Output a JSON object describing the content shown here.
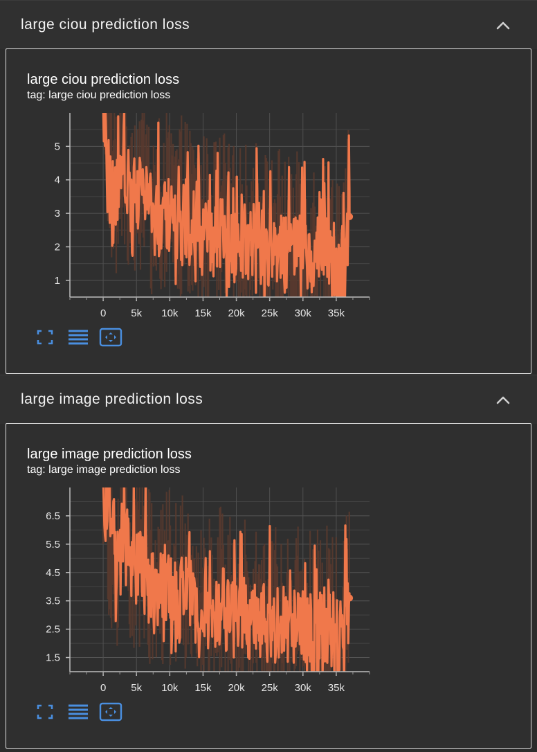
{
  "sections": [
    {
      "header_title": "large ciou prediction loss",
      "card_title": "large ciou prediction loss",
      "card_tag": "tag: large ciou prediction loss"
    },
    {
      "header_title": "large image prediction loss",
      "card_title": "large image prediction loss",
      "card_tag": "tag: large image prediction loss"
    }
  ],
  "icons": {
    "collapse": "chevron-up-icon",
    "fullscreen": "fullscreen-icon",
    "log_scale": "lines-icon",
    "fit_domain": "fit-domain-icon"
  },
  "colors": {
    "series": "#f0784b",
    "raw_series": "#5a3a2e",
    "accent": "#4a8fe0"
  },
  "chart_data": [
    {
      "type": "line",
      "title": "large ciou prediction loss",
      "xlabel": "",
      "ylabel": "",
      "xlim": [
        -5000,
        40000
      ],
      "ylim": [
        0.5,
        6.0
      ],
      "x_ticks": [
        0,
        5000,
        10000,
        15000,
        20000,
        25000,
        30000,
        35000
      ],
      "x_tick_labels": [
        "0",
        "5k",
        "10k",
        "15k",
        "20k",
        "25k",
        "30k",
        "35k"
      ],
      "y_ticks": [
        1,
        2,
        3,
        4,
        5
      ],
      "y_tick_labels": [
        "1",
        "2",
        "3",
        "4",
        "5"
      ],
      "grid": true,
      "series": [
        {
          "x": [
            0,
            1000,
            2000,
            3000,
            4000,
            5000,
            6000,
            7000,
            8000,
            9000,
            10000,
            11000,
            12000,
            13000,
            14000,
            15000,
            16000,
            17000,
            18000,
            19000,
            20000,
            21000,
            22000,
            23000,
            24000,
            25000,
            26000,
            27000,
            28000,
            29000,
            30000,
            31000,
            32000,
            33000,
            34000,
            35000,
            36000,
            37000
          ],
          "values": [
            6.0,
            4.2,
            3.4,
            4.8,
            3.6,
            3.5,
            3.9,
            3.1,
            2.8,
            3.2,
            2.9,
            2.6,
            3.0,
            2.7,
            2.4,
            2.5,
            2.2,
            2.3,
            2.6,
            2.1,
            2.0,
            2.2,
            1.9,
            2.3,
            2.0,
            1.8,
            2.1,
            1.9,
            1.7,
            1.8,
            2.0,
            1.6,
            1.8,
            1.9,
            1.7,
            1.6,
            1.5,
            2.9
          ]
        }
      ]
    },
    {
      "type": "line",
      "title": "large image prediction loss",
      "xlabel": "",
      "ylabel": "",
      "xlim": [
        -5000,
        40000
      ],
      "ylim": [
        1.0,
        7.5
      ],
      "x_ticks": [
        0,
        5000,
        10000,
        15000,
        20000,
        25000,
        30000,
        35000
      ],
      "x_tick_labels": [
        "0",
        "5k",
        "10k",
        "15k",
        "20k",
        "25k",
        "30k",
        "35k"
      ],
      "y_ticks": [
        1.5,
        2.5,
        3.5,
        4.5,
        5.5,
        6.5
      ],
      "y_tick_labels": [
        "1.5",
        "2.5",
        "3.5",
        "4.5",
        "5.5",
        "6.5"
      ],
      "grid": true,
      "series": [
        {
          "x": [
            0,
            1000,
            2000,
            3000,
            4000,
            5000,
            6000,
            7000,
            8000,
            9000,
            10000,
            11000,
            12000,
            13000,
            14000,
            15000,
            16000,
            17000,
            18000,
            19000,
            20000,
            21000,
            22000,
            23000,
            24000,
            25000,
            26000,
            27000,
            28000,
            29000,
            30000,
            31000,
            32000,
            33000,
            34000,
            35000,
            36000,
            37000
          ],
          "values": [
            7.5,
            5.6,
            4.6,
            6.2,
            4.8,
            4.6,
            5.0,
            4.1,
            3.8,
            4.2,
            3.9,
            3.5,
            3.9,
            3.6,
            3.2,
            3.3,
            3.0,
            3.1,
            3.4,
            2.9,
            2.8,
            3.0,
            2.7,
            3.1,
            2.8,
            2.6,
            2.9,
            2.7,
            2.5,
            2.6,
            2.8,
            2.4,
            2.6,
            2.7,
            2.5,
            2.4,
            2.3,
            3.6
          ]
        }
      ]
    }
  ]
}
